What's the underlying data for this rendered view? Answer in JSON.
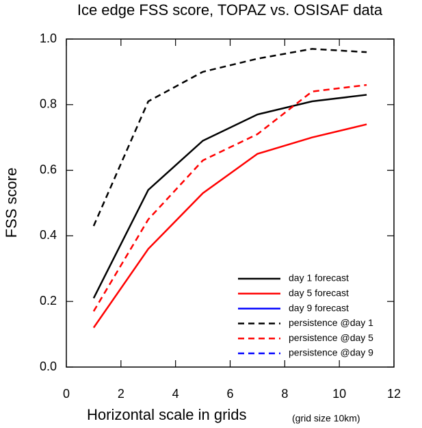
{
  "chart_data": {
    "type": "line",
    "title": "Ice edge FSS score, TOPAZ vs. OSISAF data",
    "x_label": "Horizontal scale in grids",
    "x_label_note": "(grid size 10km)",
    "y_label": "FSS score",
    "x": [
      1,
      3,
      5,
      7,
      9,
      11
    ],
    "series": [
      {
        "name": "day 1 forecast",
        "color": "#000000",
        "dash": false,
        "values": [
          0.21,
          0.54,
          0.69,
          0.77,
          0.81,
          0.83
        ]
      },
      {
        "name": "day 5 forecast",
        "color": "#ff0000",
        "dash": false,
        "values": [
          0.12,
          0.36,
          0.53,
          0.65,
          0.7,
          0.74
        ]
      },
      {
        "name": "day 9 forecast",
        "color": "#0000ff",
        "dash": false,
        "values": [
          null,
          null,
          null,
          null,
          null,
          null
        ]
      },
      {
        "name": "persistence @day 1",
        "color": "#000000",
        "dash": true,
        "values": [
          0.43,
          0.81,
          0.9,
          0.94,
          0.97,
          0.96
        ]
      },
      {
        "name": "persistence @day 5",
        "color": "#ff0000",
        "dash": true,
        "values": [
          0.17,
          0.45,
          0.63,
          0.71,
          0.84,
          0.86
        ]
      },
      {
        "name": "persistence @day 9",
        "color": "#0000ff",
        "dash": true,
        "values": [
          null,
          null,
          null,
          null,
          null,
          null
        ]
      }
    ],
    "xlim": [
      0,
      12
    ],
    "xticks": [
      0,
      2,
      4,
      6,
      8,
      10,
      12
    ],
    "ylim": [
      0,
      1
    ],
    "yticks": [
      {
        "value": 0,
        "label": "0.0"
      },
      {
        "value": 0.2,
        "label": "0.2"
      },
      {
        "value": 0.4,
        "label": "0.4"
      },
      {
        "value": 0.6,
        "label": "0.6"
      },
      {
        "value": 0.8,
        "label": "0.8"
      },
      {
        "value": 1,
        "label": "1.0"
      }
    ],
    "grid": false,
    "legend": "lower right"
  }
}
